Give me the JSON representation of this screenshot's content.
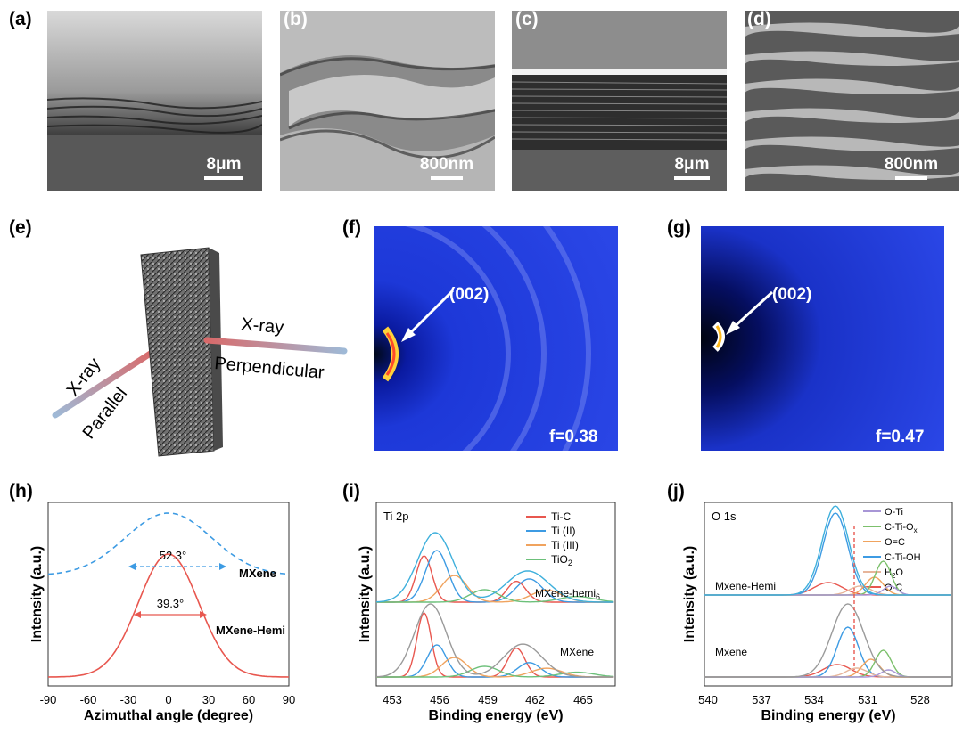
{
  "labels": {
    "a": "(a)",
    "b": "(b)",
    "c": "(c)",
    "d": "(d)",
    "e": "(e)",
    "f": "(f)",
    "g": "(g)",
    "h": "(h)",
    "i": "(i)",
    "j": "(j)"
  },
  "sem": {
    "a_scale": "8μm",
    "b_scale": "800nm",
    "c_scale": "8μm",
    "d_scale": "800nm"
  },
  "schematic": {
    "xray_left": "X-ray",
    "parallel": "Parallel",
    "xray_right": "X-ray",
    "perpendicular": "Perpendicular"
  },
  "xrd": {
    "f": {
      "peak": "(002)",
      "f_value": "f=0.38"
    },
    "g": {
      "peak": "(002)",
      "f_value": "f=0.47"
    }
  },
  "colors": {
    "mxene": "#3d9be3",
    "hemi": "#e8574f",
    "xps_ti_c": "#e8574f",
    "xps_ti2": "#3d9be3",
    "xps_ti3": "#f0a35e",
    "xps_tio2": "#6cc07a",
    "xps_fit": "#3fb0dc",
    "ojOTi": "#a896d6",
    "ojCTiOx": "#7cc06c",
    "ojOC2": "#f0a35e",
    "ojCTiOH": "#3d9be3",
    "ojH2O": "#e7b59a",
    "ojOC": "#e8574f",
    "sem_bg": "#6b6b6b",
    "xrd_bg": "#1b33d6"
  },
  "chart_data": [
    {
      "id": "h",
      "type": "line",
      "xlabel": "Azimuthal angle (degree)",
      "ylabel": "Intensity (a.u.)",
      "xlim": [
        -90,
        90
      ],
      "xticks": [
        "-90",
        "-60",
        "-30",
        "0",
        "30",
        "60",
        "90"
      ],
      "series": [
        {
          "name": "MXene",
          "fwhm_label": "52.3°",
          "fwhm": 52.3,
          "peak": 0
        },
        {
          "name": "MXene-Hemi",
          "fwhm_label": "39.3°",
          "fwhm": 39.3,
          "peak": 0
        }
      ]
    },
    {
      "id": "i",
      "type": "line",
      "title": "Ti 2p",
      "xlabel": "Binding energy (eV)",
      "ylabel": "Intensity (a.u.)",
      "xlim": [
        452,
        467
      ],
      "xticks": [
        "453",
        "456",
        "459",
        "462",
        "465"
      ],
      "legend": [
        "Ti-C",
        "Ti (II)",
        "Ti (III)",
        "TiO2"
      ],
      "series_labels": {
        "top": "MXene-hemi",
        "top_sub": "6",
        "bottom": "MXene"
      },
      "peaks": {
        "Ti-C": 455.0,
        "Ti (II)": 455.8,
        "Ti (III)": 456.9,
        "TiO2": 458.8
      }
    },
    {
      "id": "j",
      "type": "line",
      "title": "O 1s",
      "xlabel": "Binding energy (eV)",
      "ylabel": "Intensity (a.u.)",
      "xlim": [
        540,
        526
      ],
      "xticks": [
        "540",
        "537",
        "534",
        "531",
        "528"
      ],
      "legend": [
        "O-Ti",
        "C-Ti-Ox",
        "O=C",
        "C-Ti-OH",
        "H2O",
        "O-C"
      ],
      "series_labels": {
        "top": "Mxene-Hemi",
        "bottom": "Mxene"
      },
      "dashed_line_at": 531.8
    }
  ]
}
